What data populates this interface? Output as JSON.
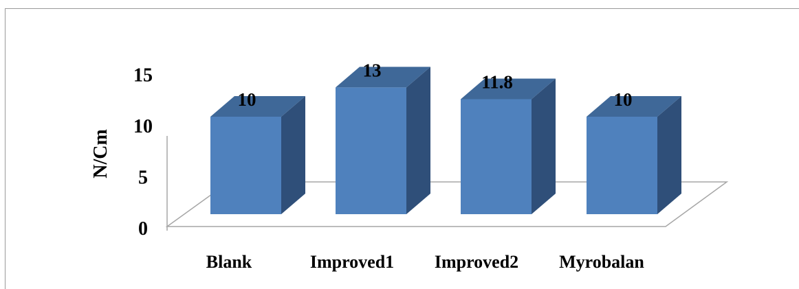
{
  "chart_data": {
    "type": "bar",
    "categories": [
      "Blank",
      "Improved1",
      "Improved2",
      "Myrobalan"
    ],
    "values": [
      10,
      13,
      11.8,
      10
    ],
    "data_labels": [
      "10",
      "13",
      "11.8",
      "10"
    ],
    "title": "",
    "xlabel": "",
    "ylabel": "N/Cm",
    "ylim": [
      0,
      15
    ],
    "yticks": [
      "0",
      "5",
      "10",
      "15"
    ],
    "grid": false,
    "legend": "none",
    "style": "3d-column",
    "colors": {
      "front": "#4f81bd",
      "top": "#3f6898",
      "side": "#2f4f79",
      "floor": "#a6a6a6"
    }
  }
}
